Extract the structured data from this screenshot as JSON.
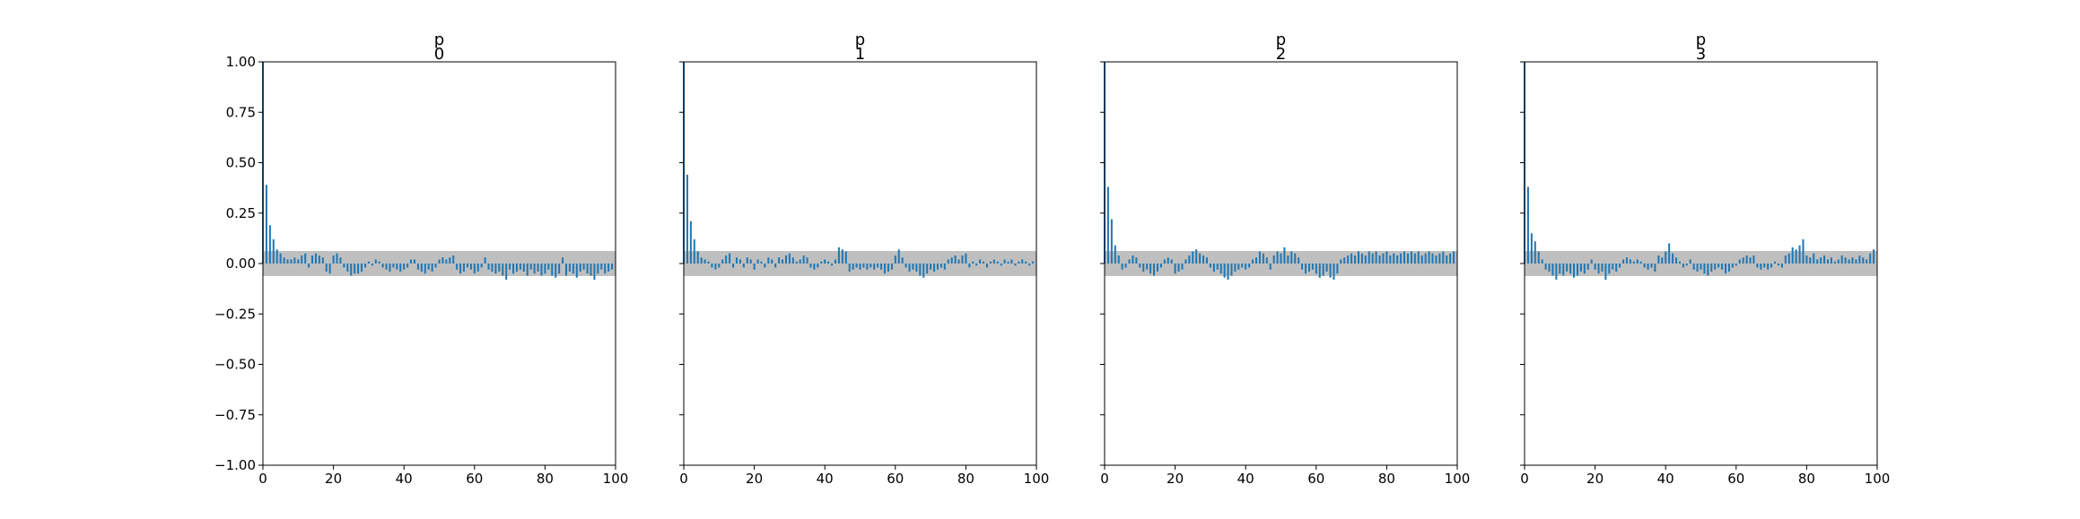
{
  "chart_data": {
    "type": "bar",
    "shared_y": true,
    "ylim": [
      -1.0,
      1.0
    ],
    "xlim": [
      0,
      100
    ],
    "yticks": [
      1.0,
      0.75,
      0.5,
      0.25,
      0.0,
      -0.25,
      -0.5,
      -0.75,
      -1.0
    ],
    "ytick_labels": [
      "1.00",
      "0.75",
      "0.50",
      "0.25",
      "0.00",
      "−0.25",
      "−0.50",
      "−0.75",
      "−1.00"
    ],
    "xticks": [
      0,
      20,
      40,
      60,
      80,
      100
    ],
    "xtick_labels": [
      "0",
      "20",
      "40",
      "60",
      "80",
      "100"
    ],
    "confidence_band": 0.062,
    "colors": {
      "bars": "#1f77b4",
      "band": "#bfbfbf"
    },
    "panels": [
      {
        "title_line1": "p",
        "title_line2": "0",
        "lags": [
          0,
          1,
          2,
          3,
          4,
          5,
          6,
          7,
          8,
          9,
          10,
          11,
          12,
          13,
          14,
          15,
          16,
          17,
          18,
          19,
          20,
          21,
          22,
          23,
          24,
          25,
          26,
          27,
          28,
          29,
          30,
          31,
          32,
          33,
          34,
          35,
          36,
          37,
          38,
          39,
          40,
          41,
          42,
          43,
          44,
          45,
          46,
          47,
          48,
          49,
          50,
          51,
          52,
          53,
          54,
          55,
          56,
          57,
          58,
          59,
          60,
          61,
          62,
          63,
          64,
          65,
          66,
          67,
          68,
          69,
          70,
          71,
          72,
          73,
          74,
          75,
          76,
          77,
          78,
          79,
          80,
          81,
          82,
          83,
          84,
          85,
          86,
          87,
          88,
          89,
          90,
          91,
          92,
          93,
          94,
          95,
          96,
          97,
          98,
          99
        ],
        "values": [
          1.0,
          0.39,
          0.19,
          0.12,
          0.07,
          0.05,
          0.03,
          0.02,
          0.02,
          0.03,
          0.02,
          0.04,
          0.05,
          -0.02,
          0.04,
          0.05,
          0.04,
          0.03,
          -0.04,
          -0.05,
          0.04,
          0.05,
          0.03,
          -0.02,
          -0.04,
          -0.06,
          -0.05,
          -0.05,
          -0.04,
          -0.02,
          0.01,
          -0.01,
          0.02,
          0.01,
          -0.02,
          -0.03,
          -0.04,
          -0.02,
          -0.03,
          -0.04,
          -0.03,
          -0.02,
          0.02,
          0.02,
          -0.03,
          -0.04,
          -0.05,
          -0.03,
          -0.04,
          -0.02,
          0.02,
          0.03,
          0.02,
          0.03,
          0.04,
          -0.03,
          -0.05,
          -0.04,
          -0.02,
          -0.03,
          -0.05,
          -0.04,
          -0.02,
          0.03,
          -0.03,
          -0.04,
          -0.05,
          -0.04,
          -0.06,
          -0.08,
          -0.03,
          -0.05,
          -0.04,
          -0.03,
          -0.04,
          -0.06,
          -0.03,
          -0.05,
          -0.04,
          -0.06,
          -0.05,
          -0.03,
          -0.06,
          -0.07,
          -0.05,
          0.03,
          -0.06,
          -0.04,
          -0.05,
          -0.07,
          -0.04,
          -0.03,
          -0.05,
          -0.06,
          -0.08,
          -0.05,
          -0.03,
          -0.05,
          -0.04,
          -0.03
        ]
      },
      {
        "title_line1": "p",
        "title_line2": "1",
        "lags": [
          0,
          1,
          2,
          3,
          4,
          5,
          6,
          7,
          8,
          9,
          10,
          11,
          12,
          13,
          14,
          15,
          16,
          17,
          18,
          19,
          20,
          21,
          22,
          23,
          24,
          25,
          26,
          27,
          28,
          29,
          30,
          31,
          32,
          33,
          34,
          35,
          36,
          37,
          38,
          39,
          40,
          41,
          42,
          43,
          44,
          45,
          46,
          47,
          48,
          49,
          50,
          51,
          52,
          53,
          54,
          55,
          56,
          57,
          58,
          59,
          60,
          61,
          62,
          63,
          64,
          65,
          66,
          67,
          68,
          69,
          70,
          71,
          72,
          73,
          74,
          75,
          76,
          77,
          78,
          79,
          80,
          81,
          82,
          83,
          84,
          85,
          86,
          87,
          88,
          89,
          90,
          91,
          92,
          93,
          94,
          95,
          96,
          97,
          98,
          99
        ],
        "values": [
          1.0,
          0.44,
          0.21,
          0.12,
          0.06,
          0.03,
          0.02,
          0.01,
          -0.02,
          -0.03,
          -0.02,
          0.02,
          0.04,
          0.05,
          -0.02,
          0.03,
          0.02,
          -0.02,
          0.03,
          0.02,
          -0.03,
          0.02,
          0.01,
          -0.02,
          0.03,
          0.02,
          -0.02,
          0.03,
          0.02,
          0.04,
          0.05,
          0.03,
          0.01,
          0.02,
          0.04,
          0.03,
          -0.02,
          -0.03,
          -0.02,
          0.01,
          0.02,
          0.01,
          -0.01,
          0.02,
          0.08,
          0.07,
          0.06,
          -0.04,
          -0.03,
          -0.02,
          -0.03,
          -0.02,
          -0.03,
          -0.02,
          -0.03,
          -0.02,
          -0.03,
          -0.05,
          -0.04,
          -0.03,
          0.04,
          0.07,
          0.03,
          -0.02,
          -0.04,
          -0.03,
          -0.04,
          -0.06,
          -0.07,
          -0.05,
          -0.03,
          -0.04,
          -0.03,
          -0.02,
          -0.03,
          0.02,
          0.03,
          0.04,
          0.02,
          0.04,
          0.05,
          -0.02,
          0.01,
          -0.01,
          0.02,
          0.01,
          -0.02,
          0.01,
          0.02,
          0.01,
          -0.01,
          0.02,
          0.01,
          0.02,
          -0.01,
          0.01,
          0.02,
          0.01,
          -0.01,
          0.01
        ]
      },
      {
        "title_line1": "p",
        "title_line2": "2",
        "lags": [
          0,
          1,
          2,
          3,
          4,
          5,
          6,
          7,
          8,
          9,
          10,
          11,
          12,
          13,
          14,
          15,
          16,
          17,
          18,
          19,
          20,
          21,
          22,
          23,
          24,
          25,
          26,
          27,
          28,
          29,
          30,
          31,
          32,
          33,
          34,
          35,
          36,
          37,
          38,
          39,
          40,
          41,
          42,
          43,
          44,
          45,
          46,
          47,
          48,
          49,
          50,
          51,
          52,
          53,
          54,
          55,
          56,
          57,
          58,
          59,
          60,
          61,
          62,
          63,
          64,
          65,
          66,
          67,
          68,
          69,
          70,
          71,
          72,
          73,
          74,
          75,
          76,
          77,
          78,
          79,
          80,
          81,
          82,
          83,
          84,
          85,
          86,
          87,
          88,
          89,
          90,
          91,
          92,
          93,
          94,
          95,
          96,
          97,
          98,
          99
        ],
        "values": [
          1.0,
          0.38,
          0.22,
          0.09,
          0.04,
          -0.03,
          -0.02,
          0.02,
          0.04,
          0.03,
          -0.02,
          -0.04,
          -0.03,
          -0.05,
          -0.06,
          -0.04,
          -0.02,
          0.02,
          0.03,
          0.02,
          -0.05,
          -0.04,
          -0.03,
          0.02,
          0.04,
          0.06,
          0.07,
          0.05,
          0.04,
          0.03,
          -0.02,
          -0.04,
          -0.03,
          -0.05,
          -0.07,
          -0.08,
          -0.06,
          -0.04,
          -0.03,
          -0.02,
          -0.03,
          -0.02,
          0.02,
          0.03,
          0.06,
          0.05,
          0.03,
          -0.03,
          0.04,
          0.06,
          0.05,
          0.08,
          0.04,
          0.06,
          0.05,
          0.03,
          -0.03,
          -0.05,
          -0.04,
          -0.03,
          -0.05,
          -0.07,
          -0.06,
          -0.04,
          -0.07,
          -0.08,
          -0.05,
          0.02,
          0.03,
          0.04,
          0.05,
          0.04,
          0.06,
          0.05,
          0.04,
          0.06,
          0.05,
          0.06,
          0.04,
          0.05,
          0.06,
          0.04,
          0.05,
          0.04,
          0.05,
          0.06,
          0.05,
          0.06,
          0.05,
          0.06,
          0.04,
          0.05,
          0.06,
          0.05,
          0.04,
          0.05,
          0.06,
          0.04,
          0.05,
          0.06
        ]
      },
      {
        "title_line1": "p",
        "title_line2": "3",
        "lags": [
          0,
          1,
          2,
          3,
          4,
          5,
          6,
          7,
          8,
          9,
          10,
          11,
          12,
          13,
          14,
          15,
          16,
          17,
          18,
          19,
          20,
          21,
          22,
          23,
          24,
          25,
          26,
          27,
          28,
          29,
          30,
          31,
          32,
          33,
          34,
          35,
          36,
          37,
          38,
          39,
          40,
          41,
          42,
          43,
          44,
          45,
          46,
          47,
          48,
          49,
          50,
          51,
          52,
          53,
          54,
          55,
          56,
          57,
          58,
          59,
          60,
          61,
          62,
          63,
          64,
          65,
          66,
          67,
          68,
          69,
          70,
          71,
          72,
          73,
          74,
          75,
          76,
          77,
          78,
          79,
          80,
          81,
          82,
          83,
          84,
          85,
          86,
          87,
          88,
          89,
          90,
          91,
          92,
          93,
          94,
          95,
          96,
          97,
          98,
          99
        ],
        "values": [
          1.0,
          0.38,
          0.15,
          0.11,
          0.06,
          0.02,
          -0.03,
          -0.04,
          -0.06,
          -0.08,
          -0.05,
          -0.06,
          -0.04,
          -0.05,
          -0.07,
          -0.06,
          -0.04,
          -0.05,
          -0.03,
          0.02,
          -0.03,
          -0.05,
          -0.04,
          -0.08,
          -0.05,
          -0.03,
          -0.04,
          -0.02,
          0.02,
          0.03,
          0.02,
          0.01,
          0.02,
          0.01,
          -0.02,
          -0.03,
          -0.02,
          -0.04,
          0.04,
          0.03,
          0.06,
          0.1,
          0.05,
          0.03,
          0.01,
          -0.02,
          -0.01,
          0.02,
          -0.03,
          -0.04,
          -0.03,
          -0.05,
          -0.06,
          -0.04,
          -0.03,
          -0.02,
          -0.03,
          -0.05,
          -0.04,
          -0.02,
          -0.01,
          0.02,
          0.03,
          0.04,
          0.03,
          0.04,
          -0.02,
          -0.03,
          -0.02,
          -0.03,
          -0.02,
          0.01,
          -0.01,
          -0.02,
          0.04,
          0.05,
          0.08,
          0.07,
          0.09,
          0.12,
          0.04,
          0.03,
          0.05,
          0.02,
          0.03,
          0.04,
          0.02,
          0.03,
          0.01,
          0.02,
          0.04,
          0.03,
          0.02,
          0.03,
          0.02,
          0.04,
          0.03,
          0.02,
          0.05,
          0.07
        ]
      }
    ]
  }
}
